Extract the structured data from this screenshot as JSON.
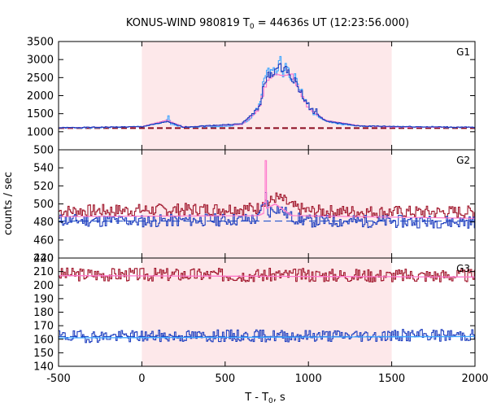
{
  "chart_data": {
    "type": "line",
    "title_text": "KONUS-WIND 980819 T",
    "title_sub": "0",
    "title_rest": " = 44636s UT (12:23:56.000)",
    "xlabel_main": "T - T",
    "xlabel_sub": "0",
    "xlabel_rest": ", s",
    "ylabel": "counts / sec",
    "xlim": [
      -500,
      2000
    ],
    "xticks": [
      -500,
      0,
      500,
      1000,
      1500,
      2000
    ],
    "highlight_interval": [
      0,
      1500
    ],
    "highlight_color": "#fde8ea",
    "colors": {
      "red": "#a0142a",
      "blue": "#1f3fbf",
      "pink": "#ff77cc",
      "cyan": "#3fa6ff"
    },
    "panels": [
      {
        "label": "G1",
        "ylim": [
          500,
          3500
        ],
        "yticks": [
          500,
          1000,
          1500,
          2000,
          2500,
          3000,
          3500
        ],
        "background_level": 1100,
        "series": [
          {
            "color": "cyan",
            "kind": "fine",
            "points": [
              [
                -500,
                1110
              ],
              [
                -300,
                1110
              ],
              [
                0,
                1140
              ],
              [
                100,
                1220
              ],
              [
                150,
                1300
              ],
              [
                160,
                1430
              ],
              [
                175,
                1200
              ],
              [
                250,
                1130
              ],
              [
                500,
                1150
              ],
              [
                600,
                1200
              ],
              [
                650,
                1350
              ],
              [
                700,
                1700
              ],
              [
                730,
                2300
              ],
              [
                750,
                2700
              ],
              [
                770,
                2600
              ],
              [
                790,
                2900
              ],
              [
                810,
                2500
              ],
              [
                830,
                3000
              ],
              [
                850,
                2600
              ],
              [
                870,
                2900
              ],
              [
                890,
                2500
              ],
              [
                910,
                2600
              ],
              [
                950,
                2200
              ],
              [
                1000,
                1700
              ],
              [
                1050,
                1450
              ],
              [
                1100,
                1300
              ],
              [
                1200,
                1200
              ],
              [
                1300,
                1160
              ],
              [
                1500,
                1130
              ],
              [
                2000,
                1120
              ]
            ]
          },
          {
            "color": "pink",
            "kind": "coarse",
            "points": [
              [
                -500,
                1110
              ],
              [
                0,
                1140
              ],
              [
                150,
                1320
              ],
              [
                250,
                1130
              ],
              [
                600,
                1200
              ],
              [
                700,
                1600
              ],
              [
                750,
                2400
              ],
              [
                800,
                2600
              ],
              [
                850,
                2550
              ],
              [
                900,
                2600
              ],
              [
                950,
                2100
              ],
              [
                1000,
                1650
              ],
              [
                1100,
                1320
              ],
              [
                1300,
                1170
              ],
              [
                1500,
                1130
              ],
              [
                2000,
                1120
              ]
            ]
          },
          {
            "color": "blue",
            "kind": "fine",
            "points": [
              [
                -500,
                1110
              ],
              [
                0,
                1140
              ],
              [
                150,
                1280
              ],
              [
                250,
                1130
              ],
              [
                600,
                1220
              ],
              [
                700,
                1650
              ],
              [
                750,
                2500
              ],
              [
                800,
                2700
              ],
              [
                850,
                2800
              ],
              [
                900,
                2550
              ],
              [
                950,
                2150
              ],
              [
                1000,
                1700
              ],
              [
                1100,
                1300
              ],
              [
                1300,
                1160
              ],
              [
                2000,
                1120
              ]
            ]
          }
        ]
      },
      {
        "label": "G2",
        "ylim": [
          440,
          560
        ],
        "yticks": [
          440,
          460,
          480,
          500,
          520,
          540
        ],
        "background_level": 481,
        "series": [
          {
            "color": "red",
            "kind": "noisy",
            "seed": 7,
            "amp": 7,
            "points": [
              [
                -500,
                492
              ],
              [
                0,
                493
              ],
              [
                700,
                495
              ],
              [
                730,
                505
              ],
              [
                760,
                500
              ],
              [
                800,
                507
              ],
              [
                850,
                504
              ],
              [
                900,
                497
              ],
              [
                1000,
                492
              ],
              [
                1500,
                491
              ],
              [
                2000,
                491
              ]
            ]
          },
          {
            "color": "blue",
            "kind": "noisy",
            "seed": 11,
            "amp": 7,
            "points": [
              [
                -500,
                482
              ],
              [
                0,
                481
              ],
              [
                700,
                483
              ],
              [
                730,
                500
              ],
              [
                745,
                510
              ],
              [
                760,
                490
              ],
              [
                800,
                496
              ],
              [
                850,
                492
              ],
              [
                900,
                485
              ],
              [
                1000,
                481
              ],
              [
                2000,
                480
              ]
            ]
          },
          {
            "color": "pink",
            "kind": "spike",
            "points": [
              [
                -500,
                486
              ],
              [
                700,
                487
              ],
              [
                735,
                490
              ],
              [
                740,
                548
              ],
              [
                745,
                548
              ],
              [
                750,
                495
              ],
              [
                800,
                500
              ],
              [
                900,
                487
              ],
              [
                2000,
                484
              ]
            ]
          }
        ]
      },
      {
        "label": "G3",
        "ylim": [
          140,
          220
        ],
        "yticks": [
          140,
          150,
          160,
          170,
          180,
          190,
          200,
          210,
          220
        ],
        "background_level": 162,
        "series": [
          {
            "color": "red",
            "kind": "noisy",
            "seed": 3,
            "amp": 5,
            "points": [
              [
                -500,
                208
              ],
              [
                2000,
                207
              ]
            ]
          },
          {
            "color": "blue",
            "kind": "noisy",
            "seed": 19,
            "amp": 4.5,
            "points": [
              [
                -500,
                162
              ],
              [
                2000,
                163
              ]
            ]
          },
          {
            "color": "pink",
            "kind": "flat",
            "points": [
              [
                -500,
                207
              ],
              [
                2000,
                206
              ]
            ]
          },
          {
            "color": "cyan",
            "kind": "flat",
            "points": [
              [
                -500,
                161
              ],
              [
                2000,
                162
              ]
            ]
          }
        ]
      }
    ]
  }
}
